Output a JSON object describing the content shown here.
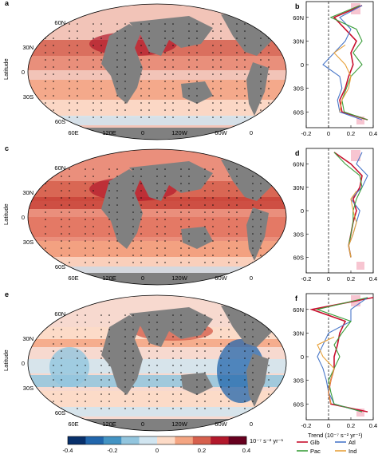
{
  "chart_data": [
    {
      "panel": "a",
      "type": "heatmap",
      "ylabel": "Latitude",
      "lat_ticks": [
        "60N",
        "30N",
        "0",
        "30S",
        "60S"
      ],
      "lon_ticks": [
        "60E",
        "120E",
        "0",
        "120W",
        "60W",
        "0"
      ],
      "colors": {
        "land": "#808080",
        "ocean_background": "#f2c4b8"
      }
    },
    {
      "panel": "b",
      "type": "line",
      "xlim": [
        -0.2,
        0.4
      ],
      "x_ticks": [
        "-0.2",
        "0",
        "0.2",
        "0.4"
      ],
      "y_ticks": [
        "60N",
        "30N",
        "0",
        "30S",
        "60S"
      ],
      "series": [
        {
          "name": "Glb",
          "color": "#c8102e",
          "lat": [
            75,
            60,
            45,
            30,
            15,
            0,
            -15,
            -30,
            -45,
            -60,
            -70
          ],
          "values": [
            0.3,
            0.05,
            0.15,
            0.25,
            0.2,
            0.22,
            0.18,
            0.15,
            0.1,
            0.12,
            0.35
          ]
        },
        {
          "name": "Atl",
          "color": "#4a78c9",
          "lat": [
            75,
            60,
            45,
            30,
            15,
            0,
            -15,
            -30,
            -45,
            -60,
            -70
          ],
          "values": [
            0.3,
            0.1,
            0.2,
            0.15,
            0.05,
            -0.05,
            0.1,
            0.12,
            0.08,
            0.1,
            0.3
          ]
        },
        {
          "name": "Pac",
          "color": "#3b9e3b",
          "lat": [
            75,
            60,
            45,
            30,
            15,
            0,
            -15,
            -30,
            -45,
            -60,
            -70
          ],
          "values": [
            0.28,
            0.02,
            0.25,
            0.3,
            0.22,
            0.3,
            0.2,
            0.16,
            0.12,
            0.14,
            0.35
          ]
        },
        {
          "name": "Ind",
          "color": "#e8a23c",
          "lat": [
            25,
            15,
            0,
            -15,
            -30,
            -45,
            -60
          ],
          "values": [
            0.15,
            0.05,
            0.15,
            0.2,
            0.18,
            0.12,
            0.1
          ]
        }
      ]
    },
    {
      "panel": "c",
      "type": "heatmap",
      "ylabel": "Latitude",
      "lat_ticks": [
        "60N",
        "30N",
        "0",
        "30S",
        "60S"
      ],
      "lon_ticks": [
        "60E",
        "120E",
        "0",
        "120W",
        "60W",
        "0"
      ],
      "colors": {
        "land": "#808080",
        "ocean_background": "#ea8f7c"
      }
    },
    {
      "panel": "d",
      "type": "line",
      "xlim": [
        -0.2,
        0.4
      ],
      "x_ticks": [
        "-0.2",
        "0",
        "0.2",
        "0.4"
      ],
      "y_ticks": [
        "60N",
        "30N",
        "0",
        "30S",
        "60S"
      ],
      "series": [
        {
          "name": "Glb",
          "color": "#c8102e",
          "lat": [
            75,
            60,
            45,
            30,
            15,
            0,
            -15,
            -30,
            -45,
            -60
          ],
          "values": [
            0.05,
            0.2,
            0.3,
            0.28,
            0.22,
            0.25,
            0.22,
            0.2,
            0.18,
            0.2
          ]
        },
        {
          "name": "Atl",
          "color": "#4a78c9",
          "lat": [
            75,
            60,
            45,
            30,
            15,
            0,
            -15,
            -30,
            -45,
            -60
          ],
          "values": [
            0.3,
            0.25,
            0.35,
            0.3,
            0.2,
            0.28,
            0.25,
            0.22,
            0.18,
            0.2
          ]
        },
        {
          "name": "Pac",
          "color": "#3b9e3b",
          "lat": [
            75,
            60,
            45,
            30,
            15,
            0,
            -15,
            -30,
            -45,
            -60
          ],
          "values": [
            0.05,
            0.15,
            0.28,
            0.3,
            0.25,
            0.22,
            0.22,
            0.2,
            0.18,
            0.2
          ]
        },
        {
          "name": "Ind",
          "color": "#e8a23c",
          "lat": [
            25,
            15,
            0,
            -15,
            -30,
            -45,
            -60
          ],
          "values": [
            0.25,
            0.2,
            0.22,
            0.25,
            0.22,
            0.18,
            0.2
          ]
        }
      ]
    },
    {
      "panel": "e",
      "type": "heatmap",
      "ylabel": "Latitude",
      "lat_ticks": [
        "60N",
        "30N",
        "0",
        "30S",
        "60S"
      ],
      "lon_ticks": [
        "60E",
        "120E",
        "0",
        "120W",
        "60W",
        "0"
      ],
      "colors": {
        "land": "#808080",
        "ocean_background": "#f7d9cf"
      }
    },
    {
      "panel": "f",
      "type": "line",
      "xlim": [
        -0.2,
        0.4
      ],
      "x_ticks": [
        "-0.2",
        "0",
        "0.2",
        "0.4"
      ],
      "y_ticks": [
        "60N",
        "30N",
        "0",
        "30S",
        "60S"
      ],
      "xlabel": "Trend (10⁻⁷ s⁻² yr⁻¹)",
      "series": [
        {
          "name": "Glb",
          "color": "#c8102e",
          "lat": [
            75,
            60,
            45,
            30,
            15,
            0,
            -15,
            -30,
            -45,
            -60,
            -70
          ],
          "values": [
            0.4,
            -0.15,
            0.15,
            0.1,
            0.08,
            0.05,
            0.05,
            0.02,
            0.0,
            0.02,
            0.35
          ]
        },
        {
          "name": "Atl",
          "color": "#4a78c9",
          "lat": [
            75,
            60,
            45,
            30,
            15,
            0,
            -15,
            -30,
            -45,
            -60,
            -70
          ],
          "values": [
            0.35,
            0.2,
            0.2,
            0.0,
            -0.05,
            -0.1,
            -0.05,
            -0.02,
            0.0,
            0.05,
            0.3
          ]
        },
        {
          "name": "Pac",
          "color": "#3b9e3b",
          "lat": [
            75,
            60,
            45,
            30,
            15,
            0,
            -15,
            -30,
            -45,
            -60,
            -70
          ],
          "values": [
            0.35,
            -0.1,
            0.2,
            0.12,
            0.05,
            0.1,
            0.05,
            0.0,
            0.02,
            0.05,
            0.3
          ]
        },
        {
          "name": "Ind",
          "color": "#e8a23c",
          "lat": [
            25,
            15,
            0,
            -15,
            -30,
            -45,
            -60
          ],
          "values": [
            0.05,
            -0.1,
            -0.05,
            0.05,
            0.02,
            0.0,
            0.02
          ]
        }
      ]
    }
  ],
  "colorbar": {
    "tick_labels": [
      "-0.4",
      "-0.2",
      "0",
      "0.2",
      "0.4"
    ],
    "unit": "10⁻⁷ s⁻² yr⁻¹",
    "colors": [
      "#08306b",
      "#2166ac",
      "#4393c3",
      "#92c5de",
      "#d1e5f0",
      "#fddbc7",
      "#f4a582",
      "#d6604d",
      "#b2182b",
      "#67001f"
    ]
  },
  "legend": {
    "title": "Trend (10⁻⁷ s⁻² yr⁻¹)",
    "entries": [
      {
        "name": "Glb",
        "color": "#c8102e"
      },
      {
        "name": "Atl",
        "color": "#4a78c9"
      },
      {
        "name": "Pac",
        "color": "#3b9e3b"
      },
      {
        "name": "Ind",
        "color": "#e8a23c"
      }
    ]
  },
  "panel_letters": {
    "a": "a",
    "b": "b",
    "c": "c",
    "d": "d",
    "e": "e",
    "f": "f"
  }
}
